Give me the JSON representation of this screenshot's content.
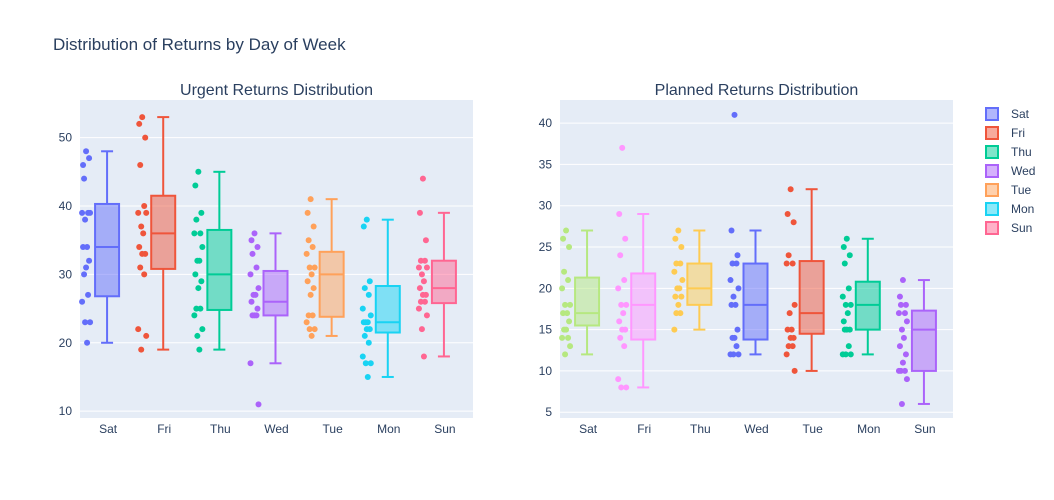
{
  "title": "Distribution of Returns by Day of Week",
  "chart_data": [
    {
      "type": "box",
      "title": "Urgent Returns Distribution",
      "xlabel": "",
      "ylabel": "",
      "ylim": [
        9,
        55.5
      ],
      "yticks": [
        10,
        20,
        30,
        40,
        50
      ],
      "grid": true,
      "categories": [
        "Sat",
        "Fri",
        "Thu",
        "Wed",
        "Tue",
        "Mon",
        "Sun"
      ],
      "series": [
        {
          "category": "Sat",
          "color": "#636efa",
          "min": 20,
          "q1": 26.8,
          "median": 34,
          "q3": 40.3,
          "max": 48,
          "points": [
            48,
            46,
            47,
            44,
            39,
            39,
            39,
            38,
            34,
            34,
            32,
            31,
            30,
            27,
            26,
            23,
            23,
            20
          ]
        },
        {
          "category": "Fri",
          "color": "#ef553b",
          "min": 19,
          "q1": 30.8,
          "median": 36,
          "q3": 41.5,
          "max": 53,
          "points": [
            53,
            52,
            50,
            46,
            40,
            39,
            39,
            37,
            36,
            34,
            33,
            33,
            31,
            30,
            22,
            21,
            19
          ]
        },
        {
          "category": "Thu",
          "color": "#00cc96",
          "min": 19,
          "q1": 24.8,
          "median": 30,
          "q3": 36.5,
          "max": 45,
          "points": [
            45,
            43,
            39,
            38,
            36,
            36,
            34,
            32,
            32,
            30,
            29,
            28,
            25,
            25,
            24,
            22,
            21,
            19
          ]
        },
        {
          "category": "Wed",
          "color": "#ab63fa",
          "min": 17,
          "q1": 24,
          "median": 26,
          "q3": 30.5,
          "max": 36,
          "points": [
            36,
            35,
            34,
            33,
            31,
            30,
            28,
            27,
            27,
            26,
            25,
            24,
            24,
            24,
            17,
            11
          ]
        },
        {
          "category": "Tue",
          "color": "#ffa15a",
          "min": 21,
          "q1": 23.8,
          "median": 30,
          "q3": 33.3,
          "max": 41,
          "points": [
            41,
            39,
            37,
            35,
            34,
            33,
            31,
            31,
            30,
            29,
            28,
            27,
            24,
            24,
            23,
            22,
            22,
            21
          ]
        },
        {
          "category": "Mon",
          "color": "#19d3f3",
          "min": 15,
          "q1": 21.5,
          "median": 23,
          "q3": 28.3,
          "max": 38,
          "points": [
            38,
            37,
            29,
            28,
            27,
            25,
            24,
            23,
            23,
            23,
            22,
            22,
            21,
            20,
            18,
            17,
            17,
            15
          ]
        },
        {
          "category": "Sun",
          "color": "#ff6692",
          "min": 18,
          "q1": 25.8,
          "median": 28,
          "q3": 32,
          "max": 39,
          "points": [
            44,
            39,
            35,
            32,
            32,
            31,
            31,
            30,
            29,
            28,
            27,
            27,
            26,
            26,
            25,
            24,
            22,
            18
          ]
        }
      ]
    },
    {
      "type": "box",
      "title": "Planned Returns Distribution",
      "xlabel": "",
      "ylabel": "",
      "ylim": [
        4.3,
        42.8
      ],
      "yticks": [
        5,
        10,
        15,
        20,
        25,
        30,
        35,
        40
      ],
      "grid": true,
      "categories": [
        "Sat",
        "Fri",
        "Thu",
        "Wed",
        "Tue",
        "Mon",
        "Sun"
      ],
      "series": [
        {
          "category": "Sat",
          "color": "#b6e880",
          "min": 12,
          "q1": 15.5,
          "median": 17,
          "q3": 21.3,
          "max": 27,
          "points": [
            27,
            26,
            25,
            22,
            21,
            20,
            18,
            18,
            17,
            17,
            16,
            15,
            15,
            14,
            14,
            13,
            12
          ]
        },
        {
          "category": "Fri",
          "color": "#ff97ff",
          "min": 8,
          "q1": 13.8,
          "median": 18,
          "q3": 21.8,
          "max": 29,
          "points": [
            37,
            29,
            26,
            24,
            21,
            20,
            18,
            18,
            17,
            16,
            15,
            15,
            14,
            13,
            9,
            8,
            8
          ]
        },
        {
          "category": "Thu",
          "color": "#fecb52",
          "min": 15,
          "q1": 18,
          "median": 20,
          "q3": 23,
          "max": 27,
          "points": [
            27,
            26,
            25,
            23,
            23,
            22,
            21,
            20,
            20,
            19,
            19,
            18,
            17,
            17,
            15
          ]
        },
        {
          "category": "Wed",
          "color": "#636efa",
          "min": 12,
          "q1": 13.8,
          "median": 18,
          "q3": 23,
          "max": 27,
          "points": [
            41,
            27,
            24,
            23,
            23,
            21,
            20,
            19,
            18,
            18,
            15,
            14,
            14,
            13,
            12,
            12,
            12
          ]
        },
        {
          "category": "Tue",
          "color": "#ef553b",
          "min": 10,
          "q1": 14.5,
          "median": 17,
          "q3": 23.3,
          "max": 32,
          "points": [
            32,
            29,
            28,
            24,
            23,
            23,
            18,
            17,
            15,
            15,
            14,
            14,
            13,
            13,
            12,
            10
          ]
        },
        {
          "category": "Mon",
          "color": "#00cc96",
          "min": 12,
          "q1": 15,
          "median": 18,
          "q3": 20.8,
          "max": 26,
          "points": [
            26,
            25,
            24,
            23,
            20,
            19,
            18,
            18,
            17,
            16,
            15,
            15,
            15,
            13,
            12,
            12,
            12
          ]
        },
        {
          "category": "Sun",
          "color": "#ab63fa",
          "min": 6,
          "q1": 10,
          "median": 15,
          "q3": 17.3,
          "max": 21,
          "points": [
            21,
            19,
            18,
            18,
            17,
            17,
            16,
            15,
            14,
            13,
            12,
            11,
            10,
            10,
            10,
            9,
            6
          ]
        }
      ]
    }
  ],
  "legend": {
    "placement": "right",
    "items": [
      {
        "label": "Sat",
        "color": "#636efa"
      },
      {
        "label": "Fri",
        "color": "#ef553b"
      },
      {
        "label": "Thu",
        "color": "#00cc96"
      },
      {
        "label": "Wed",
        "color": "#ab63fa"
      },
      {
        "label": "Tue",
        "color": "#ffa15a"
      },
      {
        "label": "Mon",
        "color": "#19d3f3"
      },
      {
        "label": "Sun",
        "color": "#ff6692"
      }
    ]
  },
  "colors": {
    "plot_background": "#e5ecf6",
    "grid": "#ffffff",
    "text": "#2a3f5f"
  }
}
